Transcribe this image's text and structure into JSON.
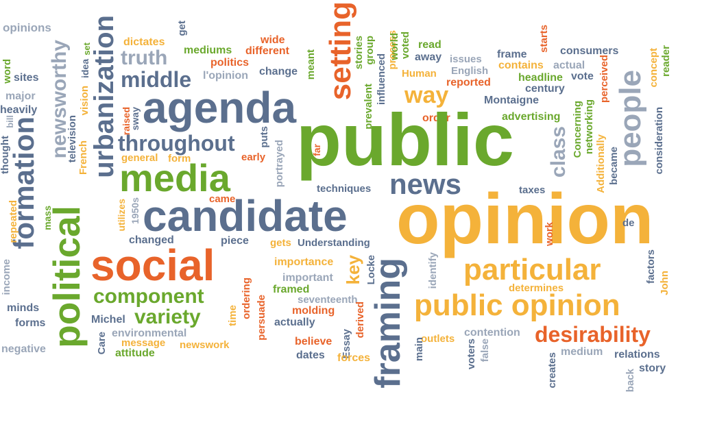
{
  "palette": {
    "green": "#6aa82d",
    "slate": "#5b6f8e",
    "orange": "#e8632a",
    "amber": "#f4b23a",
    "light-slate": "#9aa6b8"
  },
  "words": {
    "opinions": "opinions",
    "word": "word",
    "sites": "sites",
    "major": "major",
    "heavily": "heavily",
    "thought": "thought",
    "bill": "bill",
    "formation": "formation",
    "political": "political",
    "newsworthy": "newsworthy",
    "television": "television",
    "French": "French",
    "set": "set",
    "vision": "vision",
    "idea": "idea",
    "urbanization": "urbanization",
    "dictates": "dictates",
    "truth": "truth",
    "middle": "middle",
    "agenda": "agenda",
    "get": "get",
    "mediums": "mediums",
    "politics": "politics",
    "lopinion": "l'opinion",
    "wide": "wide",
    "different": "different",
    "change": "change",
    "meant": "meant",
    "setting": "setting",
    "stories": "stories",
    "group": "group",
    "prevalent": "prevalent",
    "influenced": "influenced",
    "process": "process",
    "world": "world",
    "voted": "voted",
    "read": "read",
    "away": "away",
    "Human": "Human",
    "issues": "issues",
    "English": "English",
    "frame": "frame",
    "contains": "contains",
    "starts": "starts",
    "actual": "actual",
    "consumers": "consumers",
    "headline": "headline",
    "vote": "vote",
    "century": "century",
    "reported": "reported",
    "way": "way",
    "Montaigne": "Montaigne",
    "concept": "concept",
    "reader": "reader",
    "perceived": "perceived",
    "advertising": "advertising",
    "order": "order",
    "public": "public",
    "people": "people",
    "class": "class",
    "Concerning": "Concerning",
    "networking": "networking",
    "Additionally": "Additionally",
    "became": "became",
    "consideration": "consideration",
    "raised": "raised",
    "sway": "sway",
    "throughout": "throughout",
    "puts": "puts",
    "general": "general",
    "form": "form",
    "early": "early",
    "media": "media",
    "portrayed": "portrayed",
    "far": "far",
    "news": "news",
    "techniques": "techniques",
    "taxes": "taxes",
    "came": "came",
    "candidate": "candidate",
    "opinion": "opinion",
    "mass": "mass",
    "repeated": "repeated",
    "utilizes": "utilizes",
    "1950s": "1950s",
    "changed": "changed",
    "piece": "piece",
    "gets": "gets",
    "Understanding": "Understanding",
    "social": "social",
    "income": "income",
    "importance": "importance",
    "key": "key",
    "Locke": "Locke",
    "framing": "framing",
    "particular": "particular",
    "identify": "identify",
    "work": "work",
    "de": "de",
    "factors": "factors",
    "John": "John",
    "important": "important",
    "framed": "framed",
    "determines": "determines",
    "component": "component",
    "minds": "minds",
    "ordering": "ordering",
    "seventeenth": "seventeenth",
    "publicopinion": "public opinion",
    "variety": "variety",
    "Michel": "Michel",
    "time": "time",
    "molding": "molding",
    "actually": "actually",
    "forms": "forms",
    "persuade": "persuade",
    "derived": "derived",
    "environmental": "environmental",
    "Care": "Care",
    "message": "message",
    "Essay": "Essay",
    "contention": "contention",
    "desirability": "desirability",
    "outlets": "outlets",
    "believe": "believe",
    "newswork": "newswork",
    "negative": "negative",
    "attitude": "attitude",
    "dates": "dates",
    "forces": "forces",
    "main": "main",
    "voters": "voters",
    "false": "false",
    "medium": "medium",
    "relations": "relations",
    "creates": "creates",
    "back": "back",
    "story": "story"
  }
}
